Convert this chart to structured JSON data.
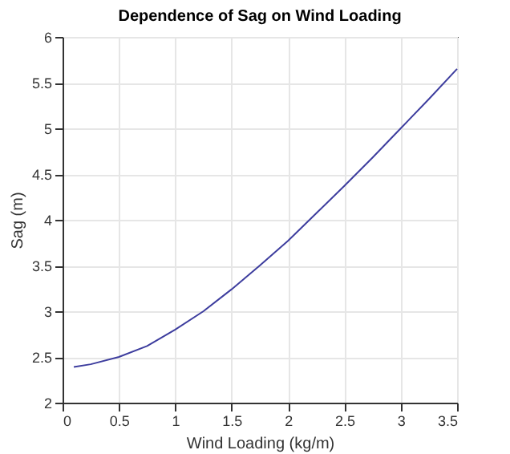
{
  "chart_data": {
    "type": "line",
    "title": "Dependence of Sag on Wind Loading",
    "xlabel": "Wind Loading (kg/m)",
    "ylabel": "Sag (m)",
    "x": [
      0.1,
      0.25,
      0.5,
      0.75,
      1.0,
      1.25,
      1.5,
      1.75,
      2.0,
      2.25,
      2.5,
      2.75,
      3.0,
      3.25,
      3.5
    ],
    "series": [
      {
        "color": "#3d3d9e",
        "values": [
          2.39,
          2.42,
          2.5,
          2.62,
          2.8,
          3.0,
          3.24,
          3.5,
          3.77,
          4.07,
          4.37,
          4.68,
          5.0,
          5.32,
          5.65
        ]
      }
    ],
    "xlim": [
      0,
      3.5
    ],
    "xticks": [
      0,
      0.5,
      1,
      1.5,
      2,
      2.5,
      3,
      3.5
    ],
    "ylim": [
      2,
      6
    ],
    "yticks": [
      2,
      2.5,
      3,
      3.5,
      4,
      4.5,
      5,
      5.5,
      6
    ],
    "grid": true,
    "line_style": "solid",
    "marker": "none"
  }
}
